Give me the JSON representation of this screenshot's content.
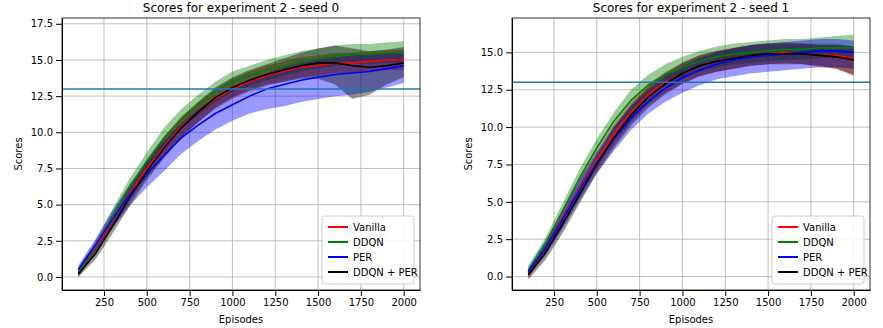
{
  "chart_data": [
    {
      "type": "line",
      "title": "Scores for experiment 2 - seed 0",
      "x_label": "Episodes",
      "y_label": "Scores",
      "x": [
        100,
        200,
        300,
        400,
        500,
        600,
        700,
        800,
        900,
        1000,
        1100,
        1200,
        1300,
        1400,
        1500,
        1600,
        1700,
        1800,
        1900,
        2000
      ],
      "series": [
        {
          "name": "Vanilla",
          "color": "#ff0000",
          "values": [
            0.3,
            2.0,
            3.9,
            5.8,
            7.5,
            9.0,
            10.4,
            11.4,
            12.3,
            13.0,
            13.5,
            13.9,
            14.2,
            14.5,
            14.6,
            14.8,
            14.8,
            14.9,
            15.0,
            15.0
          ],
          "lower": [
            0.0,
            1.6,
            3.4,
            5.2,
            6.9,
            8.3,
            9.6,
            10.7,
            11.6,
            12.3,
            12.8,
            13.2,
            13.5,
            13.8,
            13.9,
            14.1,
            14.1,
            14.2,
            14.3,
            14.3
          ],
          "upper": [
            0.6,
            2.4,
            4.4,
            6.4,
            8.1,
            9.7,
            11.1,
            12.1,
            13.0,
            13.7,
            14.2,
            14.6,
            14.9,
            15.2,
            15.3,
            15.5,
            15.5,
            15.6,
            15.7,
            15.7
          ]
        },
        {
          "name": "DDQN",
          "color": "#008000",
          "values": [
            0.3,
            2.1,
            4.2,
            6.2,
            8.0,
            9.6,
            10.9,
            11.9,
            12.8,
            13.5,
            13.9,
            14.3,
            14.6,
            14.9,
            15.1,
            15.3,
            15.4,
            15.4,
            15.5,
            15.5
          ],
          "lower": [
            0.0,
            1.7,
            3.7,
            5.6,
            7.4,
            8.9,
            10.2,
            11.2,
            12.1,
            12.8,
            13.2,
            13.6,
            13.9,
            14.2,
            14.4,
            14.6,
            14.7,
            14.7,
            14.8,
            14.8
          ],
          "upper": [
            0.6,
            2.5,
            4.7,
            6.8,
            8.6,
            10.3,
            11.6,
            12.6,
            13.5,
            14.2,
            14.6,
            15.0,
            15.3,
            15.6,
            15.8,
            16.0,
            16.1,
            16.1,
            16.2,
            16.3
          ]
        },
        {
          "name": "PER",
          "color": "#0000ff",
          "values": [
            0.5,
            2.2,
            4.0,
            5.7,
            7.1,
            8.4,
            9.6,
            10.5,
            11.3,
            11.9,
            12.5,
            13.0,
            13.3,
            13.6,
            13.8,
            14.0,
            14.1,
            14.2,
            14.4,
            14.6
          ],
          "lower": [
            0.2,
            1.8,
            3.4,
            4.9,
            6.2,
            7.3,
            8.5,
            9.4,
            10.2,
            10.8,
            11.3,
            11.6,
            11.8,
            12.1,
            12.3,
            12.5,
            12.6,
            12.8,
            13.1,
            13.4
          ],
          "upper": [
            0.8,
            2.6,
            4.6,
            6.4,
            8.0,
            9.4,
            10.6,
            11.6,
            12.4,
            13.0,
            13.6,
            14.1,
            14.5,
            14.8,
            15.0,
            15.2,
            15.3,
            15.4,
            15.5,
            15.6
          ]
        },
        {
          "name": "DDQN + PER",
          "color": "#000000",
          "values": [
            0.2,
            1.6,
            3.5,
            5.5,
            7.3,
            8.9,
            10.3,
            11.4,
            12.4,
            13.1,
            13.6,
            14.0,
            14.3,
            14.6,
            14.8,
            14.8,
            14.6,
            14.5,
            14.6,
            14.8
          ],
          "lower": [
            0.0,
            1.2,
            3.0,
            4.9,
            6.7,
            8.2,
            9.6,
            10.7,
            11.7,
            12.4,
            12.9,
            13.3,
            13.5,
            13.7,
            13.7,
            13.3,
            12.3,
            12.6,
            13.3,
            13.8
          ],
          "upper": [
            0.4,
            2.0,
            4.0,
            6.1,
            7.9,
            9.6,
            11.0,
            12.1,
            13.1,
            13.8,
            14.3,
            14.7,
            15.1,
            15.5,
            15.8,
            16.0,
            15.8,
            15.6,
            15.7,
            15.9
          ]
        }
      ],
      "target": 13,
      "xlim": [
        5,
        2095
      ],
      "ylim": [
        -0.9,
        17.9
      ],
      "xticks": [
        250,
        500,
        750,
        1000,
        1250,
        1500,
        1750,
        2000
      ],
      "yticks": [
        {
          "value": 0,
          "label": "0.0"
        },
        2.5,
        {
          "value": 5,
          "label": "5.0"
        },
        7.5,
        {
          "value": 10,
          "label": "10.0"
        },
        12.5,
        {
          "value": 15,
          "label": "15.0"
        },
        17.5
      ],
      "grid": true,
      "legend": "lower right"
    },
    {
      "type": "line",
      "title": "Scores for experiment 2 - seed 1",
      "x_label": "Episodes",
      "y_label": "Scores",
      "x": [
        100,
        200,
        300,
        400,
        500,
        600,
        700,
        800,
        900,
        1000,
        1100,
        1200,
        1300,
        1400,
        1500,
        1600,
        1700,
        1800,
        1900,
        2000
      ],
      "series": [
        {
          "name": "Vanilla",
          "color": "#ff0000",
          "values": [
            0.2,
            1.9,
            3.9,
            5.9,
            7.8,
            9.5,
            11.0,
            12.2,
            13.0,
            13.6,
            14.1,
            14.4,
            14.6,
            14.8,
            14.9,
            15.0,
            14.9,
            14.8,
            14.8,
            14.6
          ],
          "lower": [
            -0.1,
            1.5,
            3.4,
            5.3,
            7.2,
            8.8,
            10.3,
            11.5,
            12.3,
            12.9,
            13.4,
            13.7,
            13.9,
            14.1,
            14.2,
            14.3,
            14.2,
            14.0,
            13.9,
            13.4
          ],
          "upper": [
            0.5,
            2.3,
            4.4,
            6.5,
            8.4,
            10.2,
            11.7,
            12.9,
            13.7,
            14.3,
            14.8,
            15.1,
            15.3,
            15.5,
            15.6,
            15.7,
            15.6,
            15.6,
            15.6,
            15.4
          ]
        },
        {
          "name": "DDQN",
          "color": "#008000",
          "values": [
            0.4,
            2.2,
            4.4,
            6.6,
            8.6,
            10.4,
            11.8,
            12.8,
            13.5,
            14.0,
            14.4,
            14.7,
            14.9,
            15.0,
            15.1,
            15.2,
            15.2,
            15.3,
            15.3,
            15.3
          ],
          "lower": [
            0.1,
            1.8,
            3.9,
            6.0,
            8.0,
            9.8,
            11.1,
            12.1,
            12.8,
            13.3,
            13.7,
            14.0,
            14.2,
            14.3,
            14.4,
            14.5,
            14.5,
            14.6,
            14.6,
            14.6
          ],
          "upper": [
            0.7,
            2.6,
            4.9,
            7.2,
            9.2,
            11.0,
            12.5,
            13.5,
            14.2,
            14.7,
            15.1,
            15.4,
            15.6,
            15.7,
            15.8,
            15.9,
            15.9,
            16.0,
            16.1,
            16.2
          ]
        },
        {
          "name": "PER",
          "color": "#0000ff",
          "values": [
            0.3,
            1.9,
            3.8,
            5.8,
            7.6,
            9.2,
            10.6,
            11.7,
            12.6,
            13.3,
            13.8,
            14.2,
            14.5,
            14.7,
            14.8,
            14.9,
            15.0,
            15.1,
            15.1,
            15.0
          ],
          "lower": [
            0.0,
            1.4,
            3.2,
            5.1,
            6.9,
            8.4,
            9.8,
            10.9,
            11.7,
            12.3,
            12.8,
            13.2,
            13.4,
            13.6,
            13.7,
            13.8,
            13.9,
            14.0,
            14.0,
            13.9
          ],
          "upper": [
            0.6,
            2.4,
            4.4,
            6.5,
            8.3,
            10.0,
            11.4,
            12.5,
            13.4,
            14.1,
            14.6,
            15.0,
            15.3,
            15.5,
            15.6,
            15.7,
            15.8,
            15.9,
            15.9,
            15.8
          ]
        },
        {
          "name": "DDQN + PER",
          "color": "#000000",
          "values": [
            0.1,
            1.6,
            3.5,
            5.5,
            7.5,
            9.3,
            10.8,
            12.0,
            12.9,
            13.6,
            14.1,
            14.4,
            14.6,
            14.8,
            14.9,
            14.9,
            14.9,
            14.8,
            14.7,
            14.5
          ],
          "lower": [
            -0.2,
            1.1,
            2.9,
            4.9,
            6.9,
            8.6,
            10.1,
            11.3,
            12.2,
            12.9,
            13.4,
            13.7,
            13.9,
            14.1,
            14.2,
            14.2,
            14.2,
            14.1,
            13.9,
            13.5
          ],
          "upper": [
            0.4,
            2.1,
            4.1,
            6.1,
            8.1,
            10.0,
            11.5,
            12.7,
            13.6,
            14.3,
            14.8,
            15.1,
            15.3,
            15.5,
            15.6,
            15.6,
            15.6,
            15.5,
            15.5,
            15.4
          ]
        }
      ],
      "target": 13,
      "xlim": [
        5,
        2095
      ],
      "ylim": [
        -0.9,
        17.3
      ],
      "xticks": [
        250,
        500,
        750,
        1000,
        1250,
        1500,
        1750,
        2000
      ],
      "yticks": [
        {
          "value": 0,
          "label": "0.0"
        },
        2.5,
        {
          "value": 5,
          "label": "5.0"
        },
        7.5,
        {
          "value": 10,
          "label": "10.0"
        },
        12.5,
        {
          "value": 15,
          "label": "15.0"
        }
      ],
      "grid": true,
      "legend": "lower right"
    }
  ]
}
